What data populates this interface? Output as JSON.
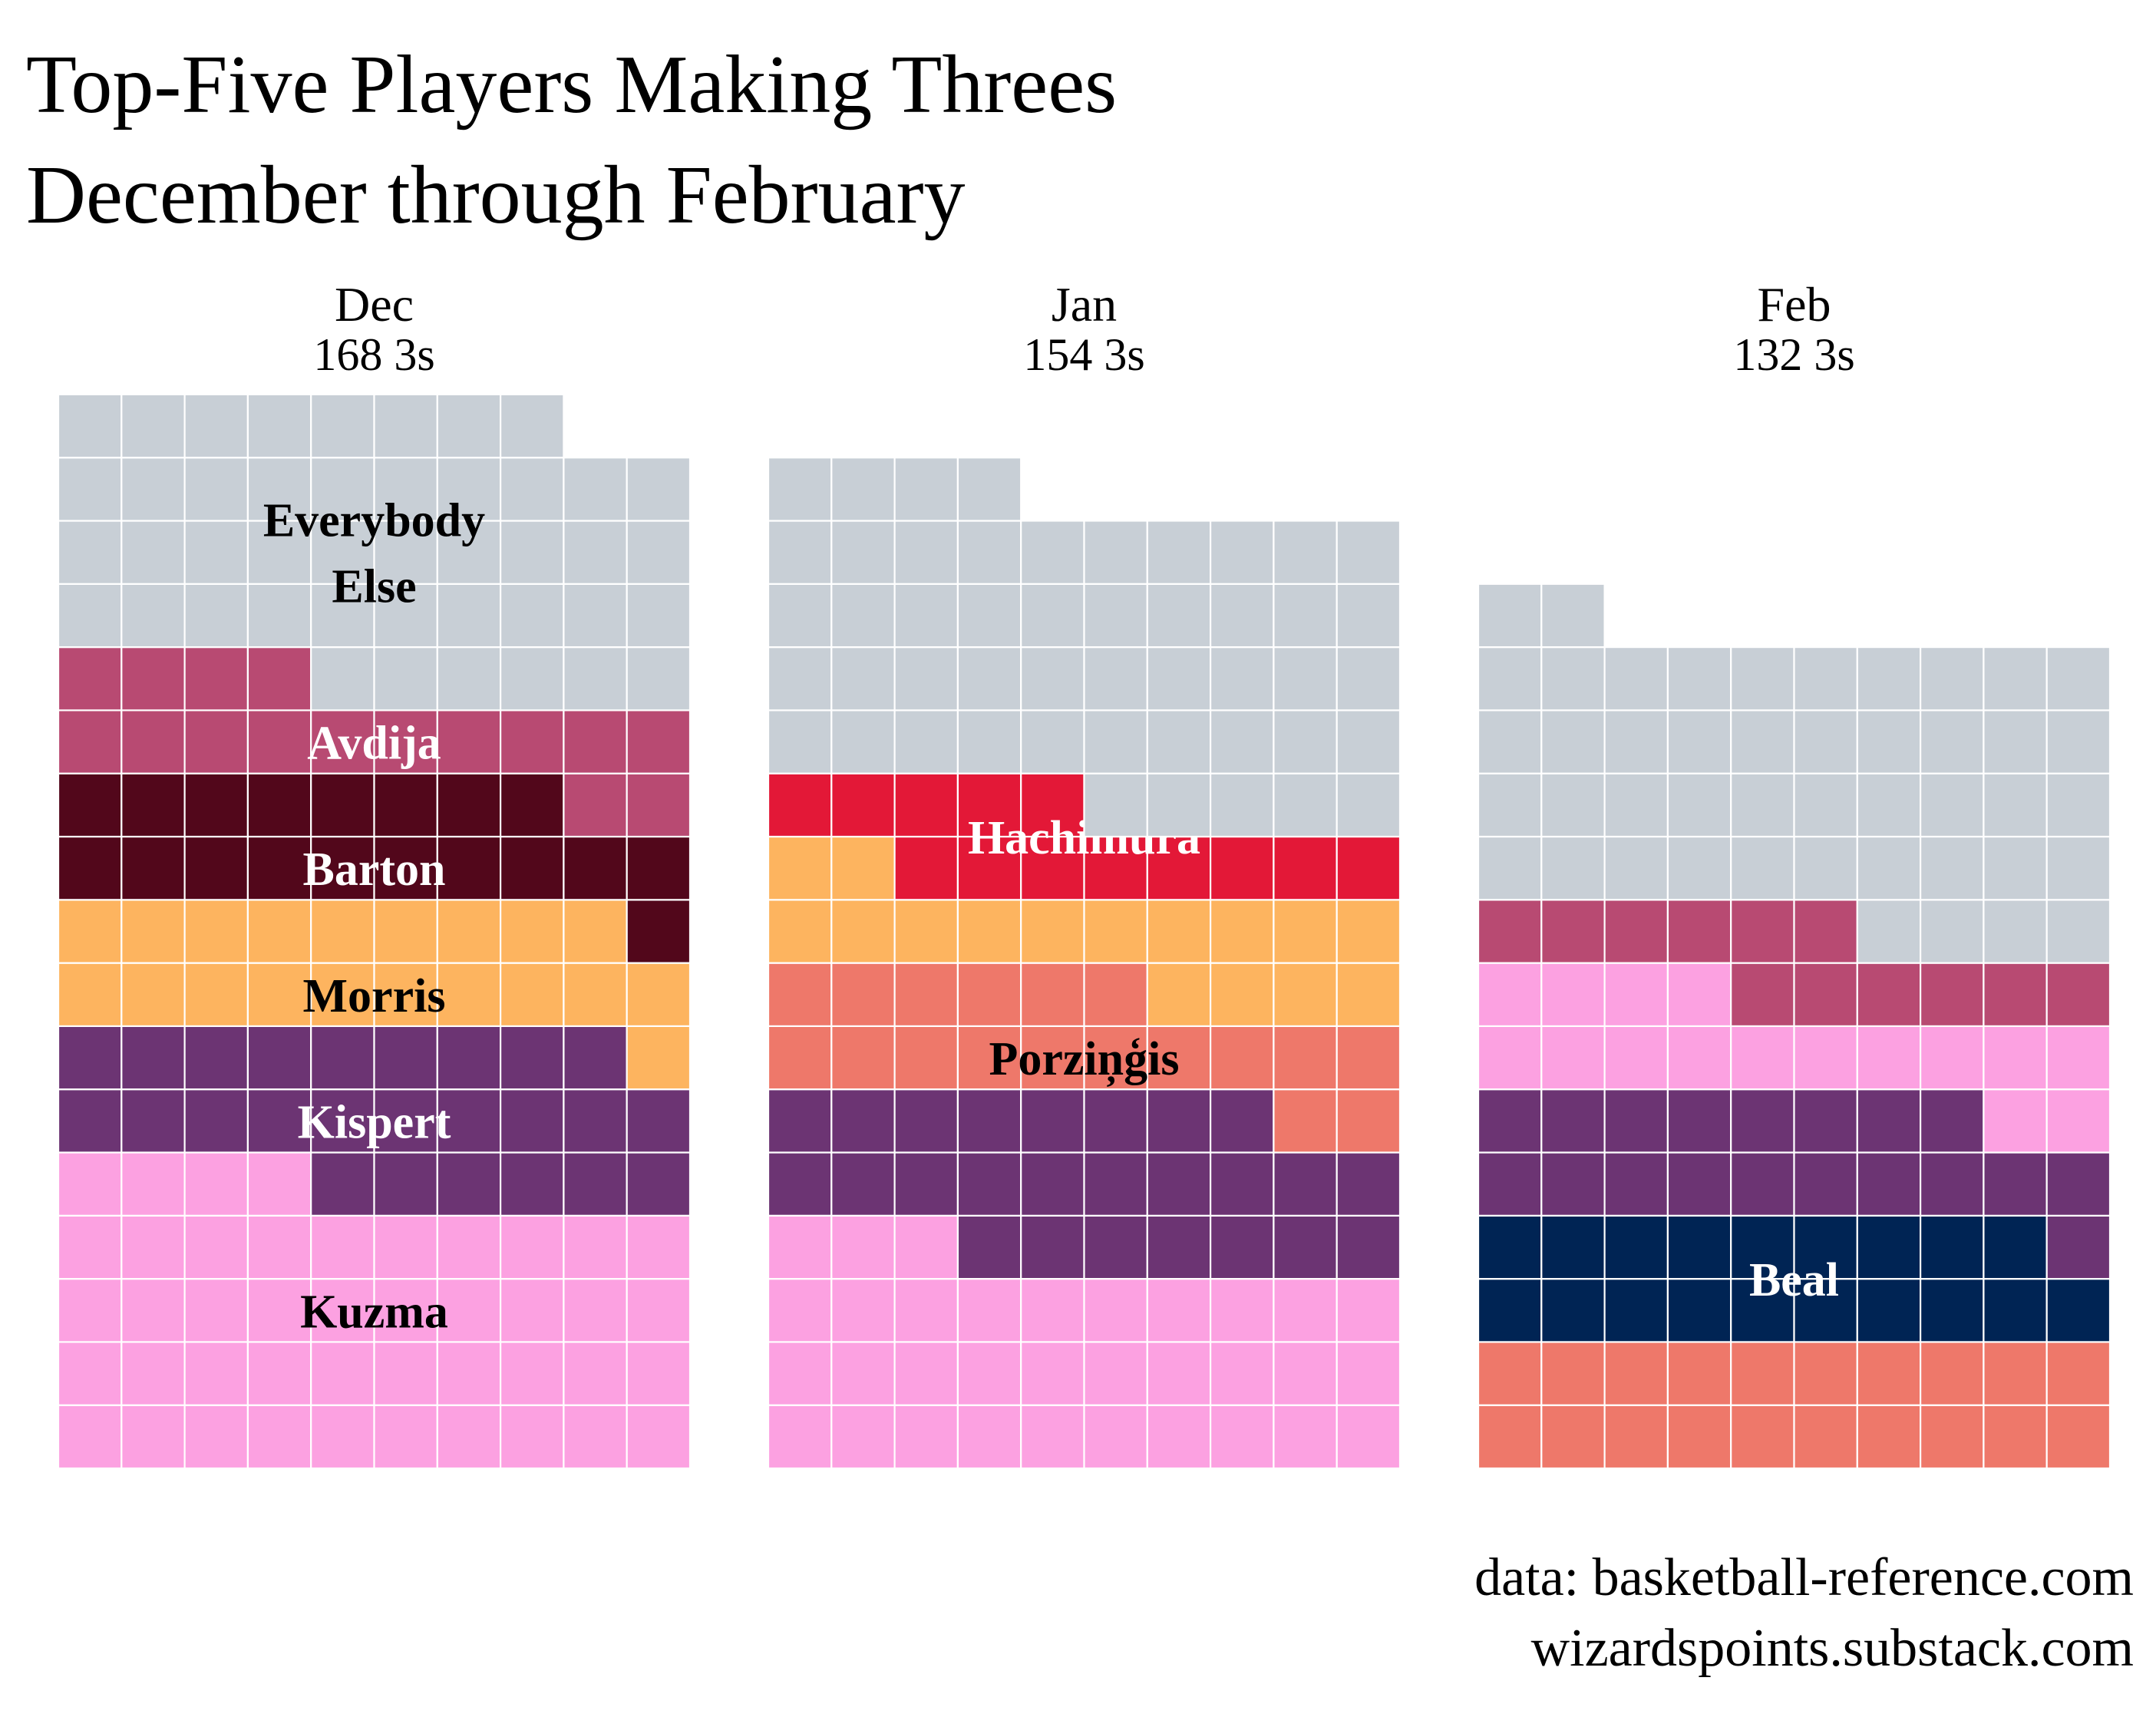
{
  "chart_data": {
    "type": "waffle",
    "title": [
      "Top-Five Players Making Threes",
      "December through February"
    ],
    "columns_per_panel": 10,
    "panels": [
      {
        "month": "Dec",
        "total_label": "168 3s",
        "total": 168,
        "segments": [
          {
            "name": "Kuzma",
            "value": 44,
            "color": "#FCA1E1",
            "label_color": "#000000"
          },
          {
            "name": "Kispert",
            "value": 25,
            "color": "#6C3473",
            "label_color": "#ffffff"
          },
          {
            "name": "Morris",
            "value": 20,
            "color": "#FDB45F",
            "label_color": "#000000"
          },
          {
            "name": "Barton",
            "value": 19,
            "color": "#52071B",
            "label_color": "#ffffff"
          },
          {
            "name": "Avdija",
            "value": 16,
            "color": "#B84A72",
            "label_color": "#ffffff"
          },
          {
            "name": "Everybody Else",
            "label_lines": [
              "Everybody",
              "Else"
            ],
            "value": 44,
            "color": "#C8CFD6",
            "label_color": "#000000"
          }
        ]
      },
      {
        "month": "Jan",
        "total_label": "154 3s",
        "total": 154,
        "segments": [
          {
            "name": "",
            "value": 33,
            "color": "#FCA1E1",
            "label_color": "#000000"
          },
          {
            "name": "",
            "value": 25,
            "color": "#6C3473",
            "label_color": "#ffffff"
          },
          {
            "name": "Porziņģis",
            "value": 18,
            "color": "#EE786A",
            "label_color": "#000000"
          },
          {
            "name": "",
            "value": 16,
            "color": "#FDB45F",
            "label_color": "#000000"
          },
          {
            "name": "Hachimura",
            "value": 13,
            "color": "#E31837",
            "label_color": "#ffffff"
          },
          {
            "name": "",
            "value": 49,
            "color": "#C8CFD6",
            "label_color": "#000000"
          }
        ]
      },
      {
        "month": "Feb",
        "total_label": "132 3s",
        "total": 132,
        "segments": [
          {
            "name": "",
            "value": 20,
            "color": "#EE786A",
            "label_color": "#000000"
          },
          {
            "name": "Beal",
            "value": 19,
            "color": "#002454",
            "label_color": "#ffffff"
          },
          {
            "name": "",
            "value": 19,
            "color": "#6C3473",
            "label_color": "#ffffff"
          },
          {
            "name": "",
            "value": 16,
            "color": "#FCA1E1",
            "label_color": "#000000"
          },
          {
            "name": "",
            "value": 12,
            "color": "#B84A72",
            "label_color": "#ffffff"
          },
          {
            "name": "",
            "value": 46,
            "color": "#C8CFD6",
            "label_color": "#000000"
          }
        ]
      }
    ]
  },
  "source": [
    "data: basketball-reference.com",
    "wizardspoints.substack.com"
  ]
}
